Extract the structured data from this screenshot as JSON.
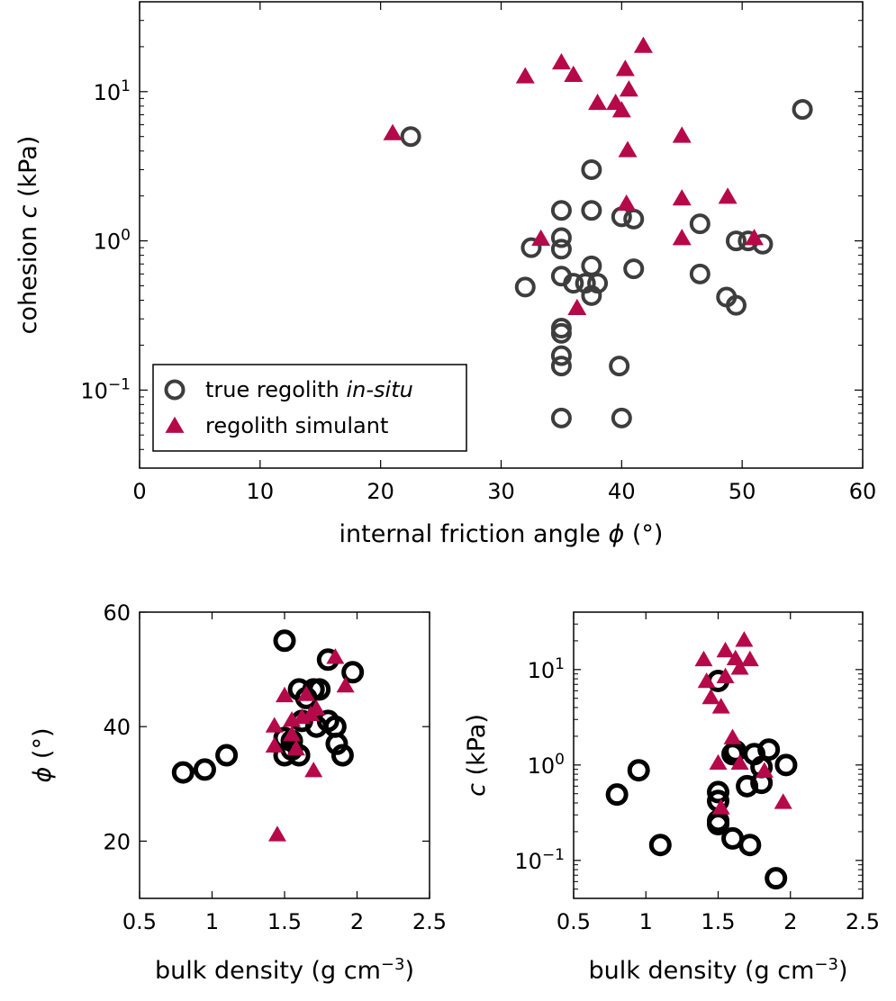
{
  "colors": {
    "regolith": "#3d3d3d",
    "regolith_small": "#000000",
    "simulant": "#b5094a"
  },
  "chart_data": [
    {
      "type": "scatter",
      "xlabel": "internal friction angle ϕ (°)",
      "ylabel": "cohesion c (kPa)",
      "xlim": [
        0,
        60
      ],
      "ylim": [
        0.03,
        40
      ],
      "yscale": "log",
      "x_ticks": [
        0,
        10,
        20,
        30,
        40,
        50,
        60
      ],
      "y_ticks": [
        0.1,
        1,
        10
      ],
      "y_tick_labels": [
        {
          "base": "10",
          "exp": "−1"
        },
        {
          "base": "10",
          "exp": "0"
        },
        {
          "base": "10",
          "exp": "1"
        }
      ],
      "legend": {
        "placement": "bottom-left",
        "entries": [
          {
            "text": "true regolith ",
            "italic_text": "in-situ",
            "marker": "circle"
          },
          {
            "text": "regolith simulant",
            "italic_text": "",
            "marker": "triangle"
          }
        ]
      },
      "series": [
        {
          "marker": "circle",
          "points": [
            {
              "x": 22.5,
              "y": 5.0
            },
            {
              "x": 55,
              "y": 7.6
            },
            {
              "x": 37.5,
              "y": 3.0
            },
            {
              "x": 35,
              "y": 1.6
            },
            {
              "x": 37.5,
              "y": 1.6
            },
            {
              "x": 40,
              "y": 1.45
            },
            {
              "x": 41,
              "y": 1.4
            },
            {
              "x": 46.5,
              "y": 1.3
            },
            {
              "x": 35,
              "y": 1.05
            },
            {
              "x": 32.5,
              "y": 0.9
            },
            {
              "x": 35,
              "y": 0.88
            },
            {
              "x": 49.5,
              "y": 1.0
            },
            {
              "x": 50.5,
              "y": 1.0
            },
            {
              "x": 51.7,
              "y": 0.95
            },
            {
              "x": 37.5,
              "y": 0.68
            },
            {
              "x": 41,
              "y": 0.65
            },
            {
              "x": 46.5,
              "y": 0.6
            },
            {
              "x": 35,
              "y": 0.58
            },
            {
              "x": 36,
              "y": 0.52
            },
            {
              "x": 37,
              "y": 0.52
            },
            {
              "x": 38,
              "y": 0.52
            },
            {
              "x": 32,
              "y": 0.49
            },
            {
              "x": 37.5,
              "y": 0.43
            },
            {
              "x": 48.7,
              "y": 0.42
            },
            {
              "x": 49.5,
              "y": 0.37
            },
            {
              "x": 35,
              "y": 0.26
            },
            {
              "x": 35,
              "y": 0.24
            },
            {
              "x": 35,
              "y": 0.17
            },
            {
              "x": 35,
              "y": 0.145
            },
            {
              "x": 39.8,
              "y": 0.145
            },
            {
              "x": 35,
              "y": 0.065
            },
            {
              "x": 40,
              "y": 0.065
            }
          ]
        },
        {
          "marker": "triangle",
          "points": [
            {
              "x": 21,
              "y": 5.2
            },
            {
              "x": 32,
              "y": 12.5
            },
            {
              "x": 35,
              "y": 15.5
            },
            {
              "x": 36,
              "y": 12.8
            },
            {
              "x": 38,
              "y": 8.3
            },
            {
              "x": 39.5,
              "y": 8.3
            },
            {
              "x": 40,
              "y": 7.4
            },
            {
              "x": 40.3,
              "y": 14
            },
            {
              "x": 40.6,
              "y": 10.2
            },
            {
              "x": 41.8,
              "y": 20
            },
            {
              "x": 40.5,
              "y": 4.0
            },
            {
              "x": 45,
              "y": 5.0
            },
            {
              "x": 45,
              "y": 1.9
            },
            {
              "x": 48.8,
              "y": 1.95
            },
            {
              "x": 40.4,
              "y": 1.75
            },
            {
              "x": 33.3,
              "y": 1.02
            },
            {
              "x": 45,
              "y": 1.03
            },
            {
              "x": 51,
              "y": 1.03
            },
            {
              "x": 36.3,
              "y": 0.35
            }
          ]
        }
      ]
    },
    {
      "type": "scatter",
      "xlabel": "bulk density (g cm−3)",
      "ylabel": "ϕ (°)",
      "xlim": [
        0.5,
        2.5
      ],
      "ylim": [
        10,
        60
      ],
      "yscale": "linear",
      "x_ticks": [
        0.5,
        1,
        1.5,
        2,
        2.5
      ],
      "x_tick_labels": [
        "0.5",
        "1",
        "1.5",
        "2",
        "2.5"
      ],
      "y_ticks": [
        20,
        40,
        60
      ],
      "y_tick_labels": [
        "20",
        "40",
        "60"
      ],
      "series": [
        {
          "marker": "circle",
          "points": [
            {
              "x": 0.8,
              "y": 32
            },
            {
              "x": 0.95,
              "y": 32.5
            },
            {
              "x": 1.1,
              "y": 35
            },
            {
              "x": 1.5,
              "y": 55
            },
            {
              "x": 1.5,
              "y": 38
            },
            {
              "x": 1.5,
              "y": 35
            },
            {
              "x": 1.55,
              "y": 36
            },
            {
              "x": 1.55,
              "y": 37.5
            },
            {
              "x": 1.6,
              "y": 35
            },
            {
              "x": 1.6,
              "y": 46.5
            },
            {
              "x": 1.62,
              "y": 41
            },
            {
              "x": 1.65,
              "y": 45
            },
            {
              "x": 1.7,
              "y": 46.5
            },
            {
              "x": 1.72,
              "y": 40
            },
            {
              "x": 1.74,
              "y": 46.5
            },
            {
              "x": 1.8,
              "y": 51.7
            },
            {
              "x": 1.8,
              "y": 41
            },
            {
              "x": 1.85,
              "y": 40
            },
            {
              "x": 1.86,
              "y": 37
            },
            {
              "x": 1.9,
              "y": 35
            },
            {
              "x": 1.97,
              "y": 49.5
            }
          ]
        },
        {
          "marker": "triangle",
          "points": [
            {
              "x": 1.45,
              "y": 21
            },
            {
              "x": 1.43,
              "y": 40
            },
            {
              "x": 1.43,
              "y": 36.5
            },
            {
              "x": 1.5,
              "y": 45.3
            },
            {
              "x": 1.55,
              "y": 41
            },
            {
              "x": 1.55,
              "y": 38.5
            },
            {
              "x": 1.58,
              "y": 36
            },
            {
              "x": 1.62,
              "y": 41.5
            },
            {
              "x": 1.65,
              "y": 45.5
            },
            {
              "x": 1.68,
              "y": 42
            },
            {
              "x": 1.7,
              "y": 32.2
            },
            {
              "x": 1.72,
              "y": 43
            },
            {
              "x": 1.85,
              "y": 52
            },
            {
              "x": 1.92,
              "y": 47
            }
          ]
        }
      ]
    },
    {
      "type": "scatter",
      "xlabel": "bulk density (g cm−3)",
      "ylabel": "c (kPa)",
      "xlim": [
        0.5,
        2.5
      ],
      "ylim": [
        0.04,
        40
      ],
      "yscale": "log",
      "x_ticks": [
        0.5,
        1,
        1.5,
        2,
        2.5
      ],
      "x_tick_labels": [
        "0.5",
        "1",
        "1.5",
        "2",
        "2.5"
      ],
      "y_ticks": [
        0.1,
        1,
        10
      ],
      "y_tick_labels": [
        {
          "base": "10",
          "exp": "−1"
        },
        {
          "base": "10",
          "exp": "0"
        },
        {
          "base": "10",
          "exp": "1"
        }
      ],
      "series": [
        {
          "marker": "circle",
          "points": [
            {
              "x": 0.8,
              "y": 0.49
            },
            {
              "x": 0.95,
              "y": 0.88
            },
            {
              "x": 1.1,
              "y": 0.145
            },
            {
              "x": 1.5,
              "y": 7.6
            },
            {
              "x": 1.5,
              "y": 0.52
            },
            {
              "x": 1.5,
              "y": 0.42
            },
            {
              "x": 1.5,
              "y": 0.26
            },
            {
              "x": 1.5,
              "y": 0.24
            },
            {
              "x": 1.6,
              "y": 0.17
            },
            {
              "x": 1.6,
              "y": 1.3
            },
            {
              "x": 1.62,
              "y": 1.4
            },
            {
              "x": 1.7,
              "y": 0.6
            },
            {
              "x": 1.72,
              "y": 0.145
            },
            {
              "x": 1.75,
              "y": 1.3
            },
            {
              "x": 1.8,
              "y": 0.65
            },
            {
              "x": 1.8,
              "y": 0.95
            },
            {
              "x": 1.85,
              "y": 1.45
            },
            {
              "x": 1.9,
              "y": 0.065
            },
            {
              "x": 1.97,
              "y": 1.0
            }
          ]
        },
        {
          "marker": "triangle",
          "points": [
            {
              "x": 1.4,
              "y": 12.5
            },
            {
              "x": 1.42,
              "y": 7.4
            },
            {
              "x": 1.45,
              "y": 5.0
            },
            {
              "x": 1.5,
              "y": 1.03
            },
            {
              "x": 1.52,
              "y": 4.0
            },
            {
              "x": 1.52,
              "y": 0.35
            },
            {
              "x": 1.55,
              "y": 15.5
            },
            {
              "x": 1.55,
              "y": 8.3
            },
            {
              "x": 1.6,
              "y": 1.9
            },
            {
              "x": 1.62,
              "y": 12.8
            },
            {
              "x": 1.65,
              "y": 10.2
            },
            {
              "x": 1.65,
              "y": 1.03
            },
            {
              "x": 1.68,
              "y": 20
            },
            {
              "x": 1.72,
              "y": 12.5
            },
            {
              "x": 1.82,
              "y": 0.85
            },
            {
              "x": 1.95,
              "y": 0.4
            }
          ]
        }
      ]
    }
  ]
}
